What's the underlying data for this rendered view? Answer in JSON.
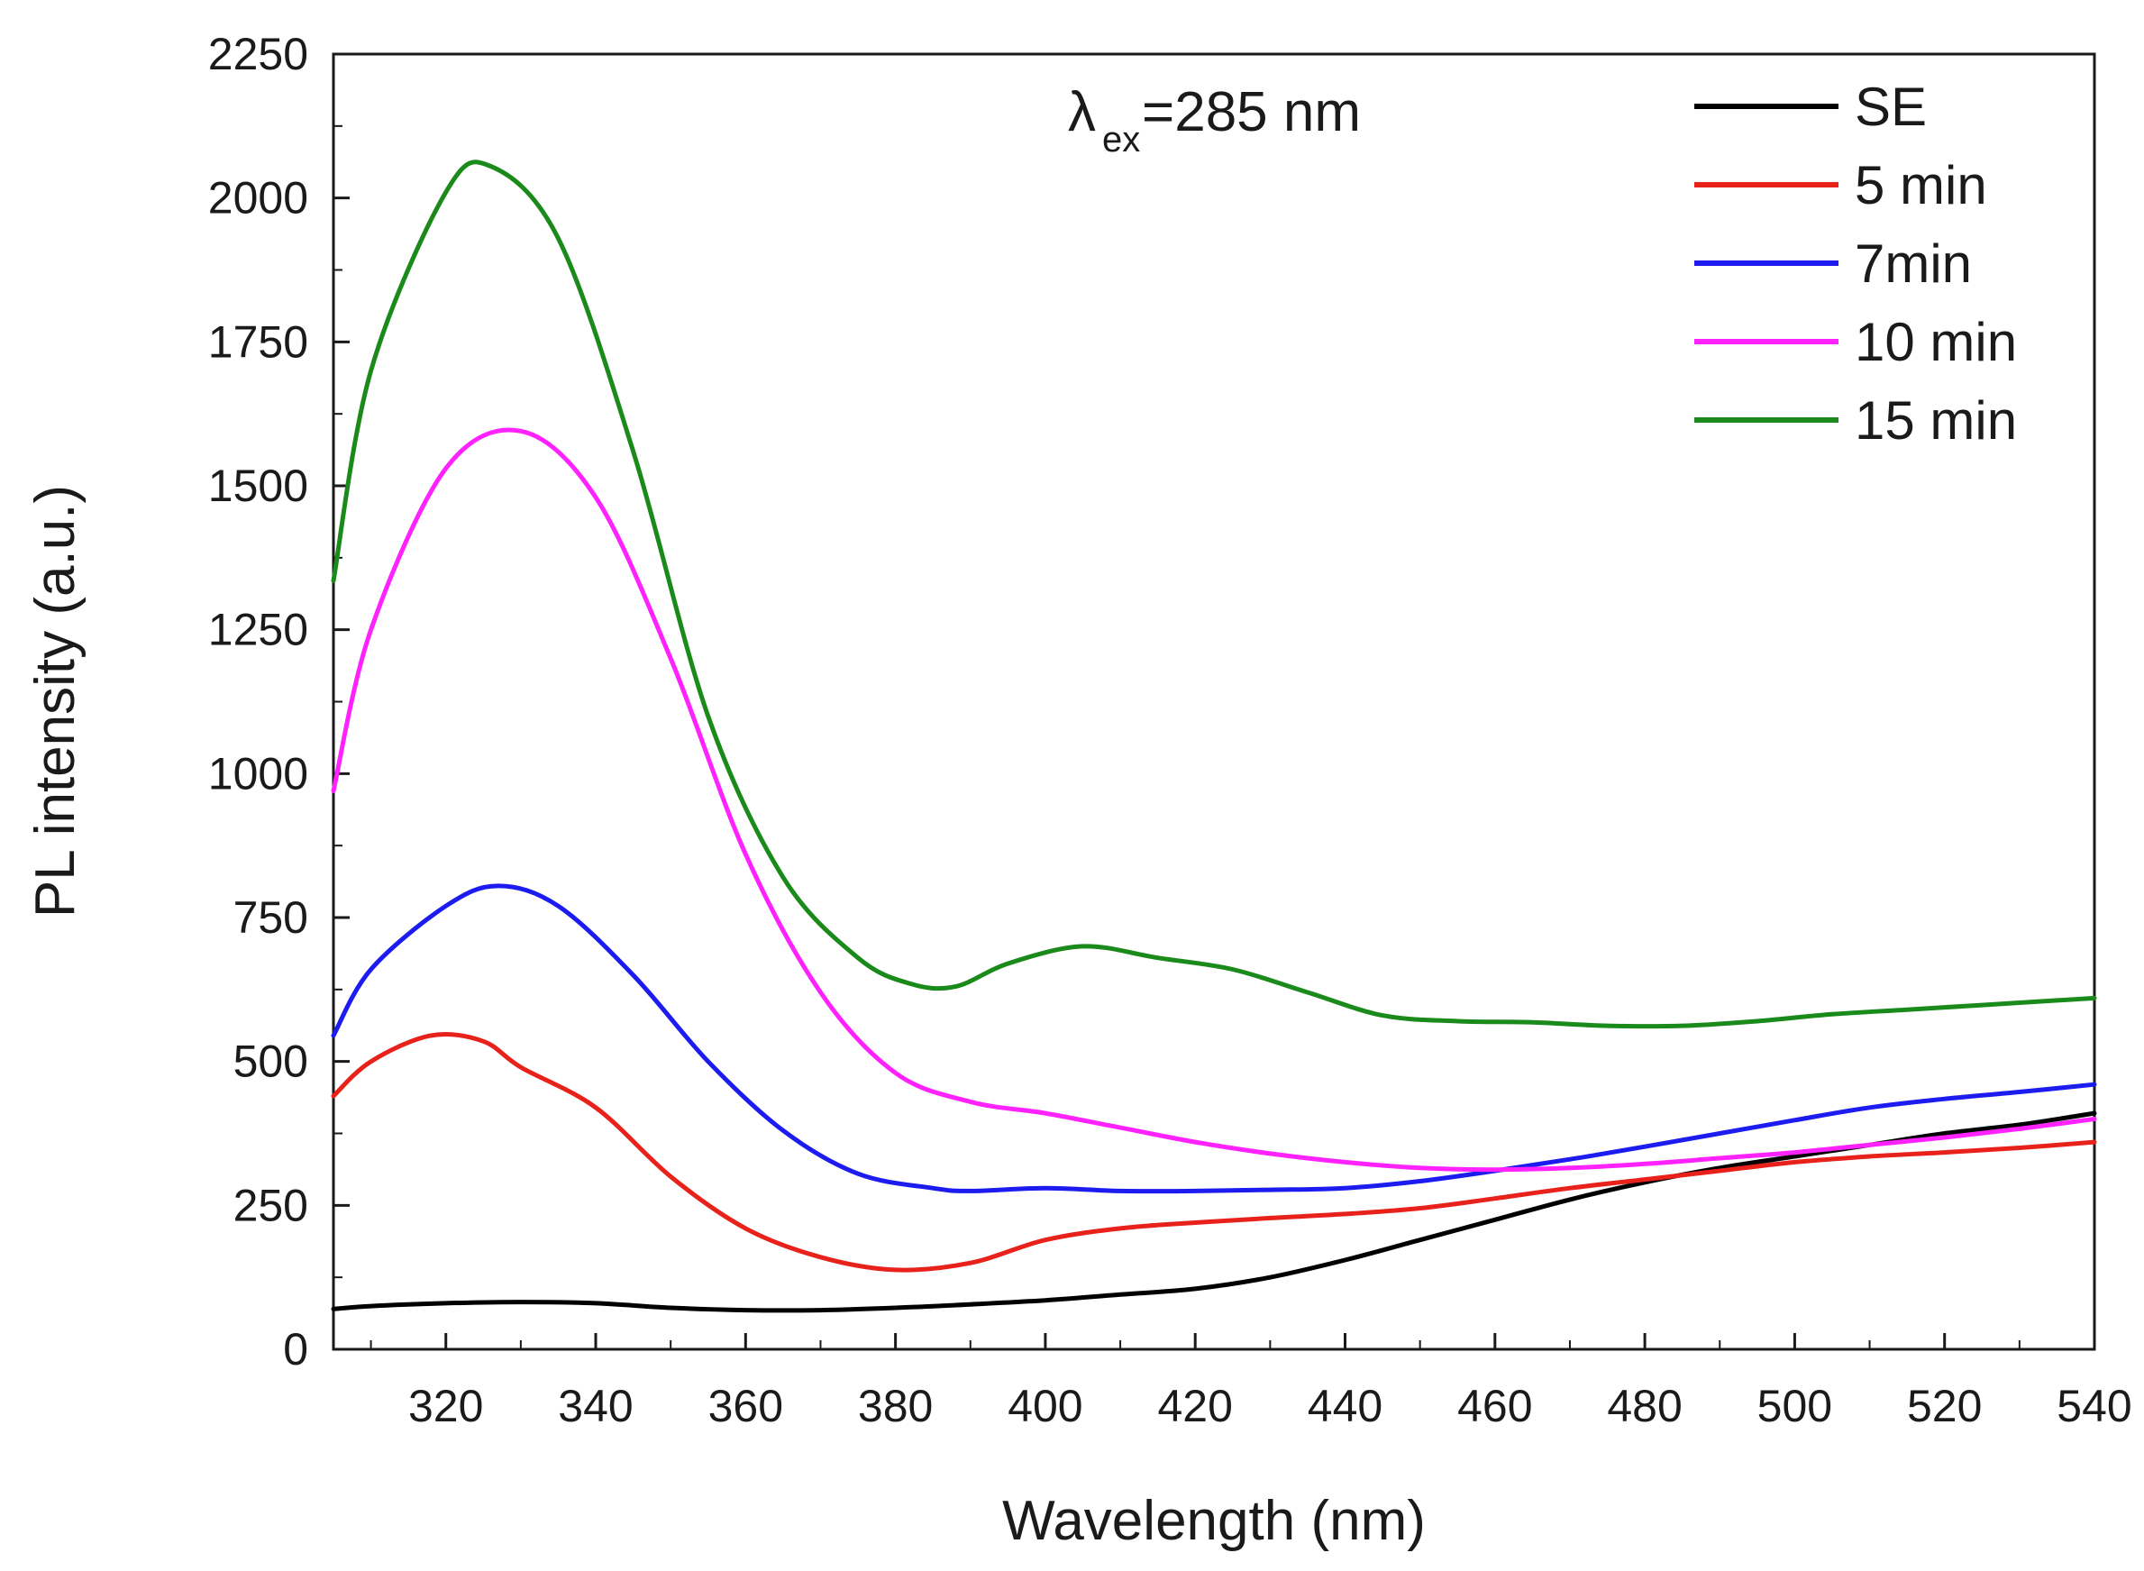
{
  "chart_data": {
    "type": "line",
    "xlabel": "Wavelength (nm)",
    "ylabel": "PL intensity (a.u.)",
    "xlim": [
      305,
      540
    ],
    "ylim": [
      0,
      2250
    ],
    "x_ticks": [
      320,
      340,
      360,
      380,
      400,
      420,
      440,
      460,
      480,
      500,
      520,
      540
    ],
    "y_ticks": [
      0,
      250,
      500,
      750,
      1000,
      1250,
      1500,
      1750,
      2000,
      2250
    ],
    "grid": false,
    "legend_position": "top-right",
    "annotation": {
      "symbol": "λ",
      "subscript": "ex",
      "text": "=285 nm"
    },
    "series": [
      {
        "name": "SE",
        "color": "#000000",
        "x": [
          305,
          310,
          320,
          330,
          340,
          350,
          360,
          370,
          380,
          390,
          400,
          410,
          420,
          430,
          440,
          450,
          460,
          470,
          480,
          490,
          500,
          510,
          520,
          530,
          540
        ],
        "y": [
          70,
          75,
          80,
          82,
          80,
          72,
          68,
          68,
          72,
          78,
          85,
          95,
          105,
          125,
          155,
          190,
          225,
          260,
          290,
          315,
          335,
          355,
          375,
          390,
          410
        ]
      },
      {
        "name": "5 min",
        "color": "#e8221b",
        "x": [
          305,
          310,
          318,
          325,
          330,
          340,
          350,
          360,
          370,
          380,
          390,
          400,
          410,
          420,
          430,
          440,
          450,
          460,
          470,
          480,
          490,
          500,
          510,
          520,
          530,
          540
        ],
        "y": [
          440,
          500,
          545,
          535,
          490,
          420,
          300,
          210,
          160,
          138,
          150,
          190,
          210,
          220,
          228,
          235,
          245,
          262,
          280,
          295,
          310,
          325,
          335,
          342,
          350,
          360
        ]
      },
      {
        "name": "7min",
        "color": "#1c1cf0",
        "x": [
          305,
          310,
          320,
          327,
          335,
          345,
          355,
          365,
          375,
          385,
          390,
          400,
          410,
          420,
          430,
          440,
          450,
          460,
          470,
          480,
          490,
          500,
          510,
          520,
          530,
          540
        ],
        "y": [
          545,
          660,
          770,
          805,
          770,
          650,
          500,
          380,
          305,
          280,
          275,
          280,
          275,
          275,
          277,
          280,
          292,
          310,
          330,
          352,
          375,
          398,
          420,
          435,
          447,
          460
        ]
      },
      {
        "name": "10 min",
        "color": "#ff22ff",
        "x": [
          305,
          310,
          320,
          330,
          340,
          350,
          360,
          370,
          380,
          390,
          400,
          410,
          420,
          430,
          440,
          450,
          460,
          470,
          480,
          490,
          500,
          510,
          520,
          530,
          540
        ],
        "y": [
          970,
          1250,
          1530,
          1595,
          1480,
          1200,
          860,
          620,
          480,
          430,
          410,
          385,
          360,
          340,
          325,
          315,
          312,
          315,
          322,
          332,
          342,
          355,
          368,
          383,
          400
        ]
      },
      {
        "name": "15 min",
        "color": "#1a8a1a",
        "x": [
          305,
          310,
          320,
          326,
          335,
          345,
          355,
          365,
          375,
          382,
          388,
          395,
          405,
          415,
          425,
          435,
          445,
          455,
          465,
          475,
          485,
          495,
          505,
          515,
          525,
          540
        ],
        "y": [
          1335,
          1700,
          2010,
          2055,
          1930,
          1560,
          1100,
          820,
          680,
          635,
          630,
          670,
          700,
          680,
          660,
          620,
          580,
          570,
          568,
          562,
          562,
          570,
          582,
          590,
          598,
          610
        ]
      }
    ]
  }
}
